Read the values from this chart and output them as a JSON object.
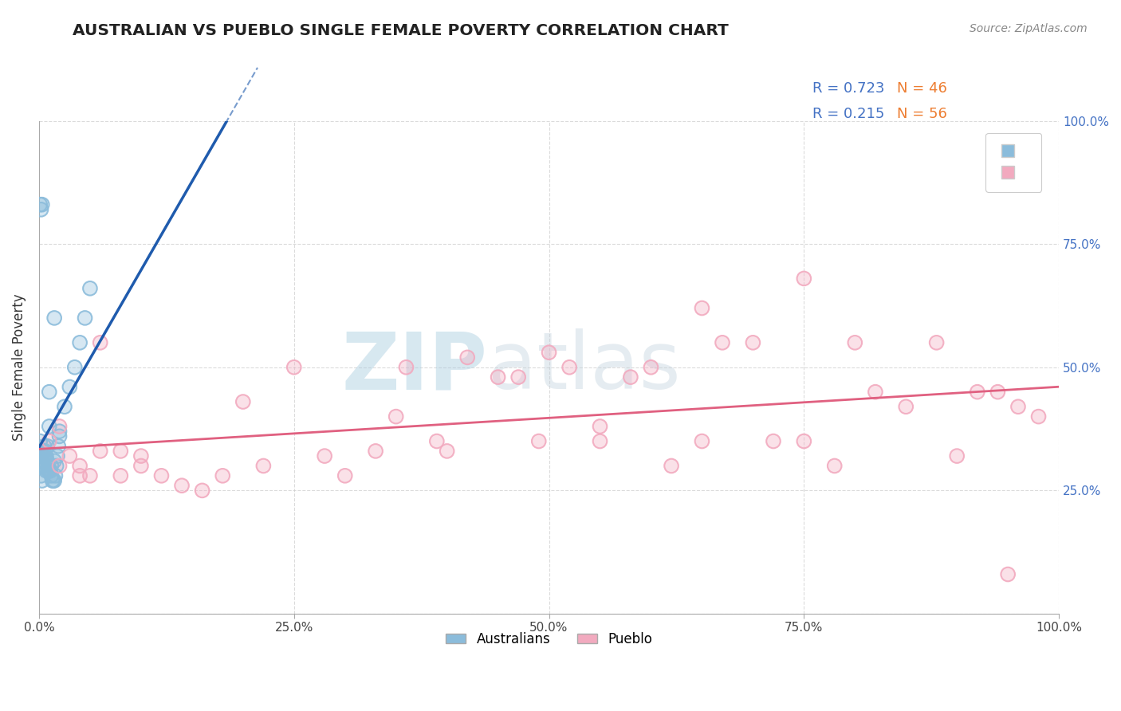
{
  "title": "AUSTRALIAN VS PUEBLO SINGLE FEMALE POVERTY CORRELATION CHART",
  "source": "Source: ZipAtlas.com",
  "ylabel": "Single Female Poverty",
  "r_aus": 0.723,
  "n_aus": 46,
  "r_pueblo": 0.215,
  "n_pueblo": 56,
  "blue_dot_color": "#8BBCDB",
  "pink_dot_color": "#F2AABF",
  "blue_line_color": "#1F5BAD",
  "pink_line_color": "#E06080",
  "blue_text_color": "#4472C4",
  "orange_text_color": "#ED7D31",
  "background_color": "#FFFFFF",
  "grid_color": "#CCCCCC",
  "title_color": "#222222",
  "source_color": "#888888",
  "aus_x": [
    0.001,
    0.002,
    0.003,
    0.004,
    0.005,
    0.006,
    0.007,
    0.008,
    0.009,
    0.01,
    0.011,
    0.012,
    0.013,
    0.014,
    0.015,
    0.016,
    0.017,
    0.018,
    0.019,
    0.02,
    0.001,
    0.002,
    0.003,
    0.005,
    0.007,
    0.009,
    0.012,
    0.015,
    0.02,
    0.025,
    0.03,
    0.035,
    0.04,
    0.045,
    0.05,
    0.004,
    0.006,
    0.008,
    0.01,
    0.003,
    0.001,
    0.002,
    0.01,
    0.015,
    0.002,
    0.003
  ],
  "aus_y": [
    0.3,
    0.31,
    0.32,
    0.33,
    0.34,
    0.33,
    0.32,
    0.31,
    0.3,
    0.29,
    0.29,
    0.28,
    0.27,
    0.27,
    0.27,
    0.28,
    0.3,
    0.32,
    0.34,
    0.36,
    0.35,
    0.33,
    0.31,
    0.3,
    0.29,
    0.29,
    0.3,
    0.31,
    0.37,
    0.42,
    0.46,
    0.5,
    0.55,
    0.6,
    0.66,
    0.3,
    0.32,
    0.34,
    0.38,
    0.83,
    0.83,
    0.82,
    0.45,
    0.6,
    0.28,
    0.27
  ],
  "pueblo_x": [
    0.01,
    0.02,
    0.03,
    0.04,
    0.05,
    0.06,
    0.08,
    0.1,
    0.12,
    0.14,
    0.16,
    0.18,
    0.2,
    0.22,
    0.25,
    0.28,
    0.3,
    0.33,
    0.36,
    0.39,
    0.42,
    0.45,
    0.47,
    0.49,
    0.5,
    0.52,
    0.55,
    0.58,
    0.6,
    0.62,
    0.65,
    0.67,
    0.7,
    0.72,
    0.75,
    0.78,
    0.8,
    0.82,
    0.85,
    0.88,
    0.9,
    0.92,
    0.94,
    0.96,
    0.98,
    0.02,
    0.04,
    0.06,
    0.08,
    0.1,
    0.35,
    0.4,
    0.55,
    0.65,
    0.75,
    0.95
  ],
  "pueblo_y": [
    0.35,
    0.38,
    0.32,
    0.3,
    0.28,
    0.55,
    0.33,
    0.3,
    0.28,
    0.26,
    0.25,
    0.28,
    0.43,
    0.3,
    0.5,
    0.32,
    0.28,
    0.33,
    0.5,
    0.35,
    0.52,
    0.48,
    0.48,
    0.35,
    0.53,
    0.5,
    0.35,
    0.48,
    0.5,
    0.3,
    0.35,
    0.55,
    0.55,
    0.35,
    0.68,
    0.3,
    0.55,
    0.45,
    0.42,
    0.55,
    0.32,
    0.45,
    0.45,
    0.42,
    0.4,
    0.3,
    0.28,
    0.33,
    0.28,
    0.32,
    0.4,
    0.33,
    0.38,
    0.62,
    0.35,
    0.08
  ],
  "xlim": [
    0.0,
    1.0
  ],
  "ylim": [
    0.0,
    1.0
  ]
}
